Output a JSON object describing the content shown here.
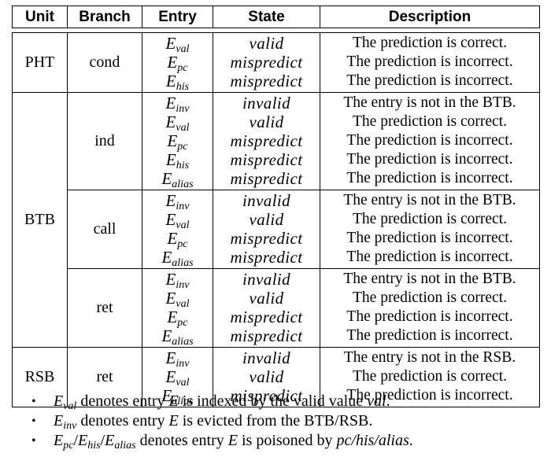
{
  "headers": {
    "unit": "Unit",
    "branch": "Branch",
    "entry": "Entry",
    "state": "State",
    "description": "Description"
  },
  "groups": [
    {
      "unit": "PHT",
      "branches": [
        {
          "branch": "cond",
          "entries": [
            {
              "sym": "E",
              "sub": "val",
              "state": "valid",
              "desc": "The prediction is correct."
            },
            {
              "sym": "E",
              "sub": "pc",
              "state": "mispredict",
              "desc": "The prediction is incorrect."
            },
            {
              "sym": "E",
              "sub": "his",
              "state": "mispredict",
              "desc": "The prediction is incorrect."
            }
          ]
        }
      ]
    },
    {
      "unit": "BTB",
      "branches": [
        {
          "branch": "ind",
          "entries": [
            {
              "sym": "E",
              "sub": "inv",
              "state": "invalid",
              "desc": "The entry is not in the BTB."
            },
            {
              "sym": "E",
              "sub": "val",
              "state": "valid",
              "desc": "The prediction is correct."
            },
            {
              "sym": "E",
              "sub": "pc",
              "state": "mispredict",
              "desc": "The prediction is incorrect."
            },
            {
              "sym": "E",
              "sub": "his",
              "state": "mispredict",
              "desc": "The prediction is incorrect."
            },
            {
              "sym": "E",
              "sub": "alias",
              "state": "mispredict",
              "desc": "The prediction is incorrect."
            }
          ]
        },
        {
          "branch": "call",
          "entries": [
            {
              "sym": "E",
              "sub": "inv",
              "state": "invalid",
              "desc": "The entry is not in the BTB."
            },
            {
              "sym": "E",
              "sub": "val",
              "state": "valid",
              "desc": "The prediction is correct."
            },
            {
              "sym": "E",
              "sub": "pc",
              "state": "mispredict",
              "desc": "The prediction is incorrect."
            },
            {
              "sym": "E",
              "sub": "alias",
              "state": "mispredict",
              "desc": "The prediction is incorrect."
            }
          ]
        },
        {
          "branch": "ret",
          "entries": [
            {
              "sym": "E",
              "sub": "inv",
              "state": "invalid",
              "desc": "The entry is not in the BTB."
            },
            {
              "sym": "E",
              "sub": "val",
              "state": "valid",
              "desc": "The prediction is correct."
            },
            {
              "sym": "E",
              "sub": "pc",
              "state": "mispredict",
              "desc": "The prediction is incorrect."
            },
            {
              "sym": "E",
              "sub": "alias",
              "state": "mispredict",
              "desc": "The prediction is incorrect."
            }
          ]
        }
      ]
    },
    {
      "unit": "RSB",
      "branches": [
        {
          "branch": "ret",
          "entries": [
            {
              "sym": "E",
              "sub": "inv",
              "state": "invalid",
              "desc": "The entry is not in the RSB."
            },
            {
              "sym": "E",
              "sub": "val",
              "state": "valid",
              "desc": "The prediction is correct."
            },
            {
              "sym": "E",
              "sub": "alias",
              "state": "mispredict",
              "desc": "The prediction is incorrect."
            }
          ]
        }
      ]
    }
  ],
  "notes": {
    "bullet": "•",
    "n1": {
      "sym": "E",
      "sub": "val",
      "t1": " denotes entry ",
      "var": "E",
      "t2": " is indexed by the valid value ",
      "val": "val",
      "t3": "."
    },
    "n2": {
      "sym": "E",
      "sub": "inv",
      "t1": " denotes entry ",
      "var": "E",
      "t2": " is evicted from the BTB/RSB."
    },
    "n3": {
      "a_sym": "E",
      "a_sub": "pc",
      "sep1": "/",
      "b_sym": "E",
      "b_sub": "his",
      "sep2": "/",
      "c_sym": "E",
      "c_sub": "alias",
      "t1": " denotes entry ",
      "var": "E",
      "t2": " is poisoned by ",
      "m": "pc/his/alias",
      "t3": "."
    }
  }
}
